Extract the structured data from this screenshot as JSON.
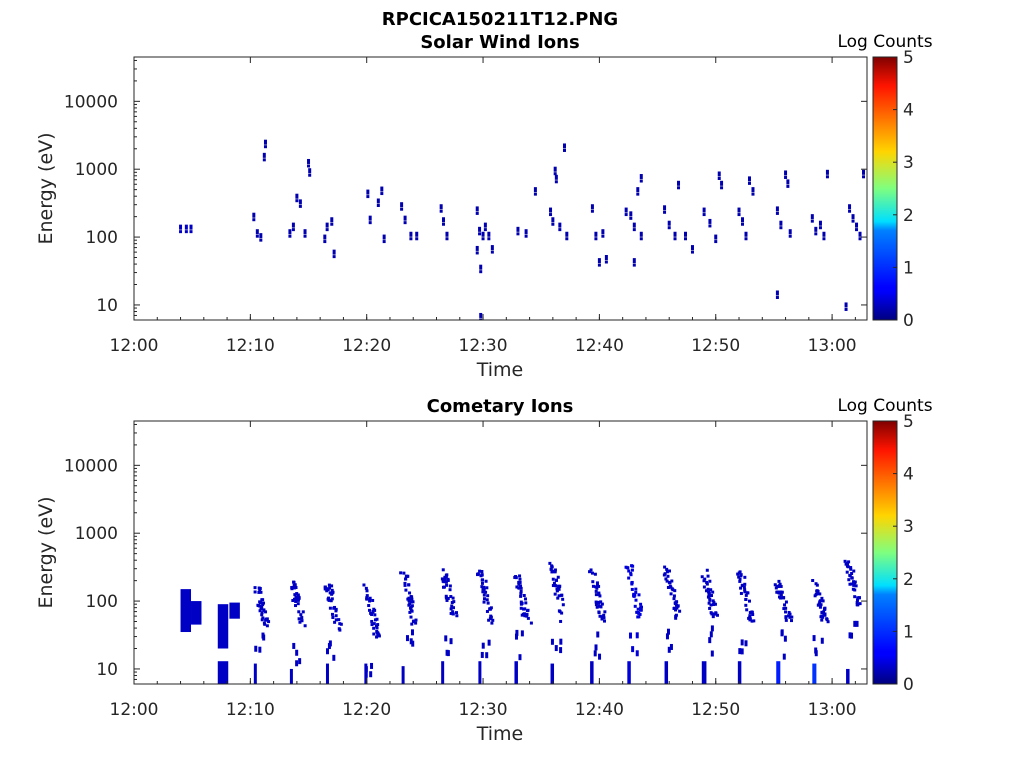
{
  "figure": {
    "title": "RPCICA150211T12.PNG"
  },
  "colors": {
    "data": "#000080",
    "axis": "#262626",
    "brighter": "#1c1cff",
    "brightest": "#2250ff"
  },
  "colormap": "jet",
  "chart_data": [
    {
      "type": "heatmap",
      "title": "Solar Wind Ions",
      "xlabel": "Time",
      "ylabel": "Energy (eV)",
      "x_range": [
        "12:00",
        "13:03"
      ],
      "x_ticks": [
        "12:00",
        "12:10",
        "12:20",
        "12:30",
        "12:40",
        "12:50",
        "13:00"
      ],
      "y_scale": "log",
      "y_range": [
        6,
        45000
      ],
      "y_ticks": [
        10,
        100,
        1000,
        10000
      ],
      "colorbar": {
        "title": "Log Counts",
        "range": [
          0,
          5
        ],
        "ticks": [
          0,
          1,
          2,
          3,
          4,
          5
        ]
      },
      "points": [
        [
          "12:04",
          140,
          0.3
        ],
        [
          "12:04.5",
          140,
          0.3
        ],
        [
          "12:04.9",
          140,
          0.3
        ],
        [
          "12:10.3",
          210,
          0.2
        ],
        [
          "12:10.6",
          120,
          0.2
        ],
        [
          "12:10.9",
          105,
          0.2
        ],
        [
          "12:11.2",
          1600,
          0.2
        ],
        [
          "12:11.3",
          2500,
          0.2
        ],
        [
          "12:13.4",
          120,
          0.2
        ],
        [
          "12:13.7",
          150,
          0.2
        ],
        [
          "12:14",
          400,
          0.2
        ],
        [
          "12:14.3",
          330,
          0.2
        ],
        [
          "12:14.7",
          120,
          0.2
        ],
        [
          "12:15",
          1300,
          0.2
        ],
        [
          "12:15.1",
          950,
          0.2
        ],
        [
          "12:16.4",
          100,
          0.2
        ],
        [
          "12:16.6",
          150,
          0.2
        ],
        [
          "12:17",
          180,
          0.2
        ],
        [
          "12:17.2",
          60,
          0.2
        ],
        [
          "12:20.1",
          460,
          0.2
        ],
        [
          "12:20.3",
          190,
          0.2
        ],
        [
          "12:21",
          340,
          0.2
        ],
        [
          "12:21.3",
          510,
          0.2
        ],
        [
          "12:21.5",
          100,
          0.2
        ],
        [
          "12:23",
          300,
          0.2
        ],
        [
          "12:23.3",
          190,
          0.2
        ],
        [
          "12:23.8",
          110,
          0.2
        ],
        [
          "12:24.3",
          110,
          0.2
        ],
        [
          "12:26.4",
          280,
          0.2
        ],
        [
          "12:26.6",
          180,
          0.2
        ],
        [
          "12:26.9",
          110,
          0.2
        ],
        [
          "12:29.5",
          260,
          0.2
        ],
        [
          "12:29.7",
          130,
          0.2
        ],
        [
          "12:30",
          110,
          0.2
        ],
        [
          "12:30.2",
          150,
          0.2
        ],
        [
          "12:30.5",
          110,
          0.2
        ],
        [
          "12:30.8",
          70,
          0.2
        ],
        [
          "12:29.8",
          36,
          0.2
        ],
        [
          "12:29.8",
          7,
          0.2
        ],
        [
          "12:29.5",
          68,
          0.2
        ],
        [
          "12:33",
          130,
          0.2
        ],
        [
          "12:33.7",
          120,
          0.2
        ],
        [
          "12:34.5",
          500,
          0.2
        ],
        [
          "12:35.8",
          250,
          0.2
        ],
        [
          "12:36",
          180,
          0.2
        ],
        [
          "12:36.2",
          1000,
          0.2
        ],
        [
          "12:36.3",
          760,
          0.2
        ],
        [
          "12:36.6",
          150,
          0.2
        ],
        [
          "12:37",
          2200,
          0.2
        ],
        [
          "12:37.2",
          110,
          0.2
        ],
        [
          "12:39.4",
          280,
          0.2
        ],
        [
          "12:39.7",
          110,
          0.2
        ],
        [
          "12:40",
          45,
          0.2
        ],
        [
          "12:40.3",
          120,
          0.2
        ],
        [
          "12:40.6",
          50,
          0.2
        ],
        [
          "12:42.3",
          250,
          0.2
        ],
        [
          "12:42.7",
          220,
          0.2
        ],
        [
          "12:43",
          150,
          0.2
        ],
        [
          "12:43.3",
          500,
          0.2
        ],
        [
          "12:43.6",
          780,
          0.2
        ],
        [
          "12:43",
          45,
          0.2
        ],
        [
          "12:43.6",
          110,
          0.2
        ],
        [
          "12:45.6",
          270,
          0.2
        ],
        [
          "12:46",
          160,
          0.2
        ],
        [
          "12:46.5",
          110,
          0.2
        ],
        [
          "12:46.8",
          620,
          0.2
        ],
        [
          "12:47.4",
          110,
          0.2
        ],
        [
          "12:48",
          70,
          0.2
        ],
        [
          "12:49",
          250,
          0.2
        ],
        [
          "12:49.5",
          170,
          0.2
        ],
        [
          "12:50",
          100,
          0.2
        ],
        [
          "12:50.3",
          850,
          0.2
        ],
        [
          "12:50.5",
          620,
          0.2
        ],
        [
          "12:52",
          250,
          0.2
        ],
        [
          "12:52.3",
          180,
          0.2
        ],
        [
          "12:52.6",
          110,
          0.2
        ],
        [
          "12:52.9",
          720,
          0.2
        ],
        [
          "12:53.2",
          500,
          0.2
        ],
        [
          "12:55.3",
          260,
          0.2
        ],
        [
          "12:55.6",
          160,
          0.2
        ],
        [
          "12:56",
          880,
          0.2
        ],
        [
          "12:56.2",
          650,
          0.2
        ],
        [
          "12:56.4",
          120,
          0.2
        ],
        [
          "12:55.3",
          15,
          0.2
        ],
        [
          "12:58.3",
          200,
          0.2
        ],
        [
          "12:58.6",
          130,
          0.2
        ],
        [
          "12:59",
          160,
          0.2
        ],
        [
          "12:59.3",
          110,
          0.2
        ],
        [
          "12:59.6",
          900,
          0.2
        ],
        [
          "13:01.5",
          280,
          0.2
        ],
        [
          "13:01.8",
          200,
          0.2
        ],
        [
          "13:02.1",
          150,
          0.2
        ],
        [
          "13:02.4",
          110,
          0.2
        ],
        [
          "13:02.7",
          900,
          0.2
        ],
        [
          "13:01.2",
          10,
          0.2
        ]
      ]
    },
    {
      "type": "heatmap",
      "title": "Cometary Ions",
      "xlabel": "Time",
      "ylabel": "Energy (eV)",
      "x_range": [
        "12:00",
        "13:03"
      ],
      "x_ticks": [
        "12:00",
        "12:10",
        "12:20",
        "12:30",
        "12:40",
        "12:50",
        "13:00"
      ],
      "y_scale": "log",
      "y_range": [
        6,
        45000
      ],
      "y_ticks": [
        10,
        100,
        1000,
        10000
      ],
      "colorbar": {
        "title": "Log Counts",
        "range": [
          0,
          5
        ],
        "ticks": [
          0,
          1,
          2,
          3,
          4,
          5
        ]
      },
      "blocks": [
        [
          "12:04",
          0.9,
          35,
          150,
          0.3
        ],
        [
          "12:04.9",
          0.9,
          45,
          100,
          0.3
        ],
        [
          "12:07.2",
          0.9,
          20,
          90,
          0.3
        ],
        [
          "12:07.2",
          0.9,
          6,
          13,
          0.3
        ],
        [
          "12:08.2",
          0.9,
          55,
          95,
          0.3
        ],
        [
          "12:10.3",
          0.2,
          6,
          12,
          0.3
        ],
        [
          "12:13.4",
          0.2,
          6,
          10,
          0.3
        ],
        [
          "12:16.5",
          0.2,
          6,
          12,
          0.3
        ],
        [
          "12:19.8",
          0.2,
          6,
          12,
          0.3
        ],
        [
          "12:23",
          0.2,
          6,
          11,
          0.3
        ],
        [
          "12:26.4",
          0.25,
          6,
          13,
          0.3
        ],
        [
          "12:29.6",
          0.25,
          6,
          13,
          0.3
        ],
        [
          "12:32.7",
          0.3,
          6,
          13,
          0.3
        ],
        [
          "12:35.8",
          0.3,
          6,
          12,
          0.3
        ],
        [
          "12:39.2",
          0.3,
          6,
          13,
          0.3
        ],
        [
          "12:42.4",
          0.3,
          6,
          13,
          0.4
        ],
        [
          "12:45.6",
          0.3,
          6,
          13,
          0.3
        ],
        [
          "12:48.8",
          0.4,
          6,
          13,
          0.3
        ],
        [
          "12:51.9",
          0.3,
          6,
          13,
          0.3
        ],
        [
          "12:55.2",
          0.35,
          6,
          13,
          0.8
        ],
        [
          "12:58.3",
          0.35,
          6,
          12,
          1.0
        ],
        [
          "13:01.2",
          0.3,
          6,
          10,
          0.3
        ]
      ],
      "clusters": [
        [
          "12:10.3",
          190,
          45,
          0.3
        ],
        [
          "12:13.4",
          200,
          45,
          0.3
        ],
        [
          "12:16.5",
          190,
          40,
          0.3
        ],
        [
          "12:19.8",
          190,
          30,
          0.3
        ],
        [
          "12:23",
          300,
          50,
          0.3
        ],
        [
          "12:26.4",
          300,
          60,
          0.3
        ],
        [
          "12:29.6",
          300,
          50,
          0.3
        ],
        [
          "12:32.7",
          250,
          50,
          0.3
        ],
        [
          "12:35.8",
          380,
          50,
          0.3
        ],
        [
          "12:39.2",
          300,
          55,
          0.3
        ],
        [
          "12:42.4",
          360,
          60,
          0.4
        ],
        [
          "12:45.6",
          340,
          60,
          0.3
        ],
        [
          "12:48.8",
          320,
          60,
          0.3
        ],
        [
          "12:51.9",
          300,
          55,
          0.3
        ],
        [
          "12:55.2",
          200,
          50,
          0.3
        ],
        [
          "12:58.3",
          220,
          50,
          0.3
        ],
        [
          "13:01.2",
          400,
          80,
          0.3
        ]
      ]
    }
  ]
}
